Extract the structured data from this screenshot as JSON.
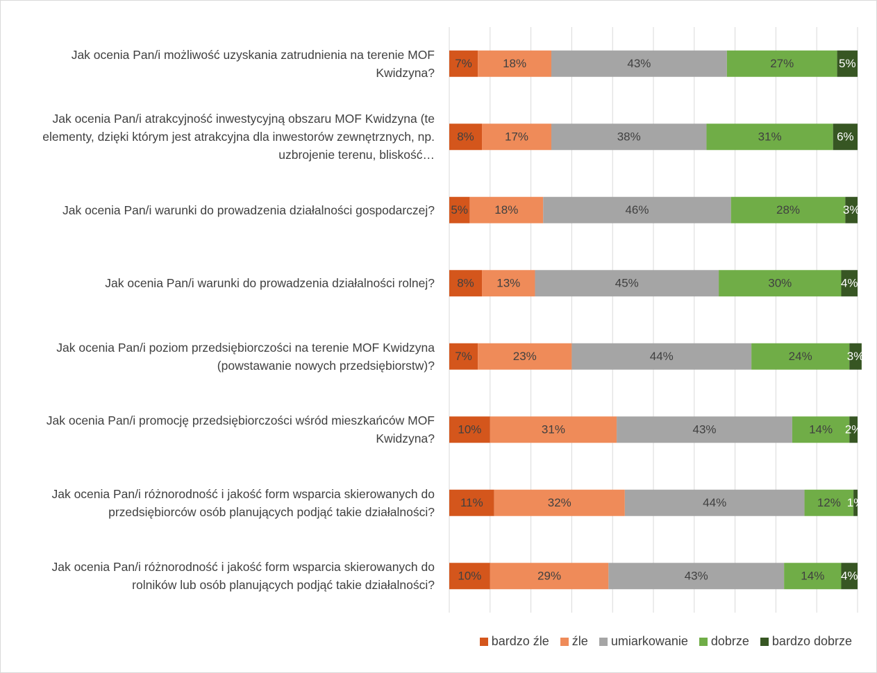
{
  "chart_data": {
    "type": "stacked_bar_horizontal",
    "categories": [
      "Jak ocenia Pan/i możliwość uzyskania zatrudnienia na terenie MOF Kwidzyna?",
      "Jak ocenia Pan/i atrakcyjność inwestycyjną obszaru MOF Kwidzyna (te elementy, dzięki którym jest atrakcyjna dla inwestorów zewnętrznych, np. uzbrojenie terenu, bliskość…",
      "Jak ocenia Pan/i warunki do prowadzenia działalności gospodarczej?",
      "Jak ocenia Pan/i warunki do prowadzenia działalności rolnej?",
      "Jak ocenia Pan/i poziom przedsiębiorczości na terenie MOF Kwidzyna (powstawanie nowych przedsiębiorstw)?",
      "Jak ocenia Pan/i promocję przedsiębiorczości wśród mieszkańców MOF Kwidzyna?",
      "Jak ocenia Pan/i różnorodność i jakość form wsparcia skierowanych do przedsiębiorców osób planujących podjąć takie działalności?",
      "Jak ocenia Pan/i różnorodność i jakość form wsparcia skierowanych do rolników lub osób planujących podjąć takie działalności?"
    ],
    "series": [
      {
        "name": "bardzo źle",
        "color": "#d4561c",
        "label_color": "#404040",
        "values": [
          7,
          8,
          5,
          8,
          7,
          10,
          11,
          10
        ],
        "value_labels": [
          "7%",
          "8%",
          "5%",
          "8%",
          "7%",
          "10%",
          "11%",
          "10%"
        ]
      },
      {
        "name": "źle",
        "color": "#ef8b59",
        "label_color": "#404040",
        "values": [
          18,
          17,
          18,
          13,
          23,
          31,
          32,
          29
        ],
        "value_labels": [
          "18%",
          "17%",
          "18%",
          "13%",
          "23%",
          "31%",
          "32%",
          "29%"
        ]
      },
      {
        "name": "umiarkowanie",
        "color": "#a5a5a5",
        "label_color": "#404040",
        "values": [
          43,
          38,
          46,
          45,
          44,
          43,
          44,
          43
        ],
        "value_labels": [
          "43%",
          "38%",
          "46%",
          "45%",
          "44%",
          "43%",
          "44%",
          "43%"
        ]
      },
      {
        "name": "dobrze",
        "color": "#70ad47",
        "label_color": "#404040",
        "values": [
          27,
          31,
          28,
          30,
          24,
          14,
          12,
          14
        ],
        "value_labels": [
          "27%",
          "31%",
          "28%",
          "30%",
          "24%",
          "14%",
          "12%",
          "14%"
        ]
      },
      {
        "name": "bardzo dobrze",
        "color": "#375623",
        "label_color": "#ffffff",
        "values": [
          5,
          6,
          3,
          4,
          3,
          2,
          1,
          4
        ],
        "value_labels": [
          "5%",
          "6%",
          "3%",
          "4%",
          "3%",
          "2%",
          "1%",
          "4%"
        ]
      }
    ],
    "xlim": [
      0,
      100
    ],
    "xticks": [
      0,
      10,
      20,
      30,
      40,
      50,
      60,
      70,
      80,
      90,
      100
    ],
    "grid": true,
    "legend": "bottom"
  }
}
